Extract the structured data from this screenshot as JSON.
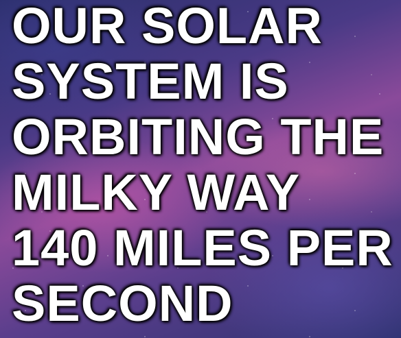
{
  "caption": {
    "lines": [
      "OUR SOLAR",
      "SYSTEM IS",
      "ORBITING THE",
      "MILKY WAY",
      "140 MILES PER",
      "SECOND"
    ]
  }
}
